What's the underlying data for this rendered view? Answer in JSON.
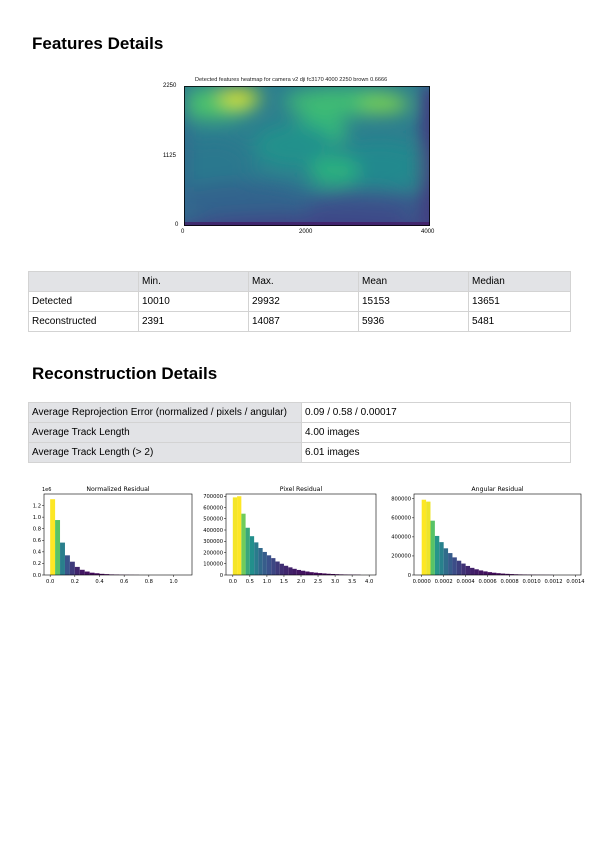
{
  "features": {
    "title": "Features Details",
    "heatmap": {
      "title": "Detected features heatmap for camera v2 dji fc3170 4000 2250 brown 0.6666",
      "y_ticks": [
        "2250",
        "1125",
        "0"
      ],
      "x_ticks": [
        "0",
        "2000",
        "4000"
      ]
    },
    "table": {
      "columns": [
        "",
        "Min.",
        "Max.",
        "Mean",
        "Median"
      ],
      "rows": [
        [
          "Detected",
          "10010",
          "29932",
          "15153",
          "13651"
        ],
        [
          "Reconstructed",
          "2391",
          "14087",
          "5936",
          "5481"
        ]
      ]
    }
  },
  "reconstruction": {
    "title": "Reconstruction Details",
    "table": {
      "rows": [
        [
          "Average Reprojection Error (normalized / pixels / angular)",
          "0.09 / 0.58 / 0.00017"
        ],
        [
          "Average Track Length",
          "4.00 images"
        ],
        [
          "Average Track Length (> 2)",
          "6.01 images"
        ]
      ]
    }
  },
  "chart_data": [
    {
      "type": "bar",
      "title": "Normalized Residual",
      "offset_label": "1e6",
      "xlim": [
        -0.05,
        1.15
      ],
      "ylim": [
        0,
        1.4
      ],
      "x_ticks": [
        "0.0",
        "0.2",
        "0.4",
        "0.6",
        "0.8",
        "1.0"
      ],
      "y_ticks": [
        "0.0",
        "0.2",
        "0.4",
        "0.6",
        "0.8",
        "1.0",
        "1.2"
      ],
      "bin_width": 0.04,
      "x": [
        0.02,
        0.06,
        0.1,
        0.14,
        0.18,
        0.22,
        0.26,
        0.3,
        0.34,
        0.38,
        0.42,
        0.46,
        0.5,
        0.54,
        0.58,
        0.62,
        0.66,
        0.7
      ],
      "values": [
        1.31,
        0.95,
        0.56,
        0.34,
        0.23,
        0.14,
        0.09,
        0.06,
        0.04,
        0.03,
        0.02,
        0.015,
        0.01,
        0.008,
        0.005,
        0.004,
        0.003,
        0.002
      ]
    },
    {
      "type": "bar",
      "title": "Pixel Residual",
      "xlim": [
        -0.2,
        4.2
      ],
      "ylim": [
        0,
        720000
      ],
      "x_ticks": [
        "0.0",
        "0.5",
        "1.0",
        "1.5",
        "2.0",
        "2.5",
        "3.0",
        "3.5",
        "4.0"
      ],
      "y_ticks": [
        "0",
        "100000",
        "200000",
        "300000",
        "400000",
        "500000",
        "600000",
        "700000"
      ],
      "bin_width": 0.125,
      "x": [
        0.0625,
        0.1875,
        0.3125,
        0.4375,
        0.5625,
        0.6875,
        0.8125,
        0.9375,
        1.0625,
        1.1875,
        1.3125,
        1.4375,
        1.5625,
        1.6875,
        1.8125,
        1.9375,
        2.0625,
        2.1875,
        2.3125,
        2.4375,
        2.5625,
        2.6875,
        2.8125,
        2.9375,
        3.0625,
        3.1875,
        3.3125,
        3.4375,
        3.5625,
        3.6875
      ],
      "values": [
        690000,
        700000,
        545000,
        420000,
        345000,
        290000,
        240000,
        205000,
        175000,
        150000,
        120000,
        100000,
        82000,
        68000,
        55000,
        45000,
        38000,
        31000,
        25000,
        21000,
        17000,
        14000,
        11000,
        9000,
        7000,
        5500,
        4500,
        3500,
        3000,
        2500
      ]
    },
    {
      "type": "bar",
      "title": "Angular Residual",
      "xlim": [
        -7e-05,
        0.00145
      ],
      "ylim": [
        0,
        850000
      ],
      "x_ticks": [
        "0.0000",
        "0.0002",
        "0.0004",
        "0.0006",
        "0.0008",
        "0.0010",
        "0.0012",
        "0.0014"
      ],
      "y_ticks": [
        "0",
        "200000",
        "400000",
        "600000",
        "800000"
      ],
      "bin_width": 4e-05,
      "x": [
        2e-05,
        6e-05,
        0.0001,
        0.00014,
        0.00018,
        0.00022,
        0.00026,
        0.0003,
        0.00034,
        0.00038,
        0.00042,
        0.00046,
        0.0005,
        0.00054,
        0.00058,
        0.00062,
        0.00066,
        0.0007,
        0.00074,
        0.00078,
        0.00082,
        0.00086,
        0.0009,
        0.00094,
        0.00098,
        0.00102,
        0.00106,
        0.0011,
        0.00114,
        0.00118
      ],
      "values": [
        790000,
        770000,
        570000,
        410000,
        345000,
        280000,
        230000,
        185000,
        150000,
        120000,
        95000,
        75000,
        60000,
        48000,
        38000,
        30000,
        24000,
        19000,
        15000,
        12000,
        9500,
        7500,
        6000,
        5000,
        4000,
        3200,
        2600,
        2100,
        1700,
        1400
      ]
    }
  ]
}
